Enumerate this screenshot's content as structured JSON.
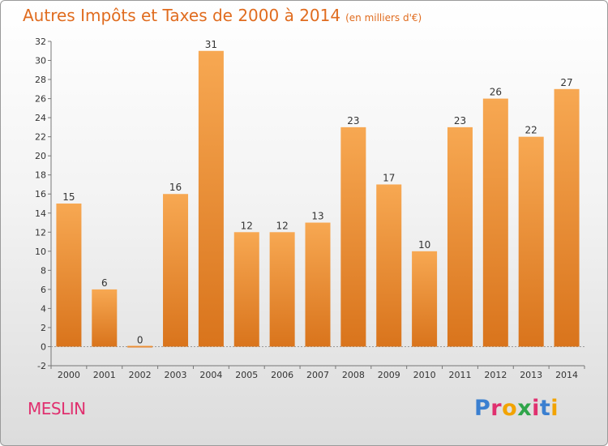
{
  "title": "Autres Impôts et Taxes de 2000 à 2014",
  "subtitle": "(en milliers d'€)",
  "town": "MESLIN",
  "logo": {
    "letters": [
      "P",
      "r",
      "o",
      "x",
      "i",
      "t",
      "i"
    ],
    "colors": [
      "#3a7fd0",
      "#e0306f",
      "#f2a300",
      "#2fa54a",
      "#e0306f",
      "#3a7fd0",
      "#f2a300"
    ]
  },
  "chart_data": {
    "type": "bar",
    "title": "Autres Impôts et Taxes de 2000 à 2014",
    "subtitle": "(en milliers d'€)",
    "xlabel": "",
    "ylabel": "",
    "categories": [
      "2000",
      "2001",
      "2002",
      "2003",
      "2004",
      "2005",
      "2006",
      "2007",
      "2008",
      "2009",
      "2010",
      "2011",
      "2012",
      "2013",
      "2014"
    ],
    "values": [
      15,
      6,
      0,
      16,
      31,
      12,
      12,
      13,
      23,
      17,
      10,
      23,
      26,
      22,
      27
    ],
    "data_labels": [
      "15",
      "6",
      "0",
      "16",
      "31",
      "12",
      "12",
      "13",
      "23",
      "17",
      "10",
      "23",
      "26",
      "22",
      "27"
    ],
    "ylim": [
      -2,
      32
    ],
    "yticks": [
      -2,
      0,
      2,
      4,
      6,
      8,
      10,
      12,
      14,
      16,
      18,
      20,
      22,
      24,
      26,
      28,
      30,
      32
    ],
    "grid": false,
    "legend": "none",
    "bar_color": "#f0943a"
  }
}
